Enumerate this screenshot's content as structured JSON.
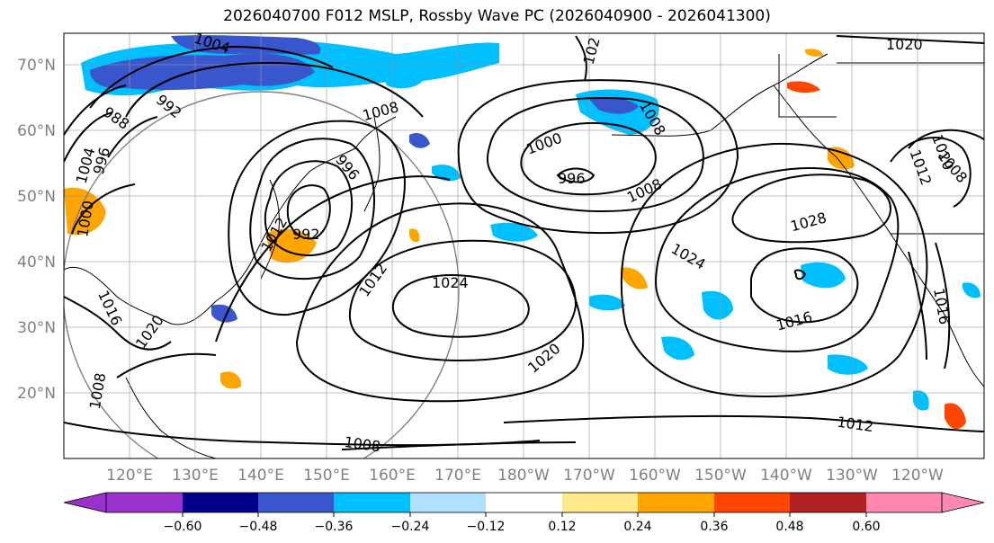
{
  "title": "2026040700 F012 MSLP, Rossby Wave PC (2026040900 - 2026041300)",
  "map": {
    "lat_ticks": [
      "70°N",
      "60°N",
      "50°N",
      "40°N",
      "30°N",
      "20°N"
    ],
    "lon_ticks": [
      "120°E",
      "130°E",
      "140°E",
      "150°E",
      "160°E",
      "170°E",
      "180°W",
      "170°W",
      "160°W",
      "150°W",
      "140°W",
      "130°W",
      "120°W"
    ],
    "lat_range": [
      10,
      75
    ],
    "lon_range": [
      110,
      250
    ],
    "isobar_labels": [
      "1004",
      "988",
      "992",
      "996",
      "1004",
      "1000",
      "1008",
      "996",
      "992",
      "1012",
      "1024",
      "1016",
      "1020",
      "1008",
      "1000",
      "996",
      "1008",
      "1028",
      "1024",
      "1016",
      "1020",
      "1012",
      "1008",
      "1012",
      "1008",
      "1016",
      "1020",
      "1020",
      "1008",
      "1012",
      "102"
    ]
  },
  "colorbar": {
    "ticks": [
      "−0.60",
      "−0.48",
      "−0.36",
      "−0.24",
      "−0.12",
      "0.12",
      "0.24",
      "0.36",
      "0.48",
      "0.60"
    ],
    "colors": [
      "#9932cc",
      "#00008b",
      "#3a56cc",
      "#00bfff",
      "#b0e0ff",
      "#ffffff",
      "#ffe98a",
      "#ffa500",
      "#ff4500",
      "#b22222",
      "#ff89ae"
    ]
  }
}
